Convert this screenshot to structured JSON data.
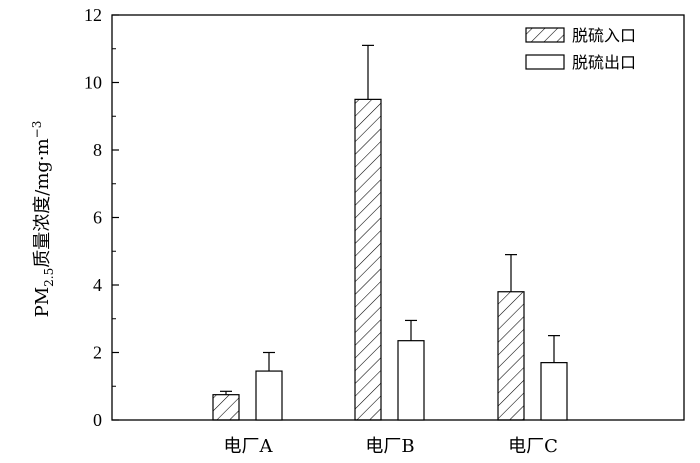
{
  "chart_data": {
    "type": "bar",
    "title": "",
    "xlabel": "",
    "ylabel": {
      "prefix": "PM",
      "sub": "2.5",
      "text": "质量浓度/mg·m",
      "sup": "−3"
    },
    "ylim": [
      0,
      12
    ],
    "yticks": [
      "0",
      "2",
      "4",
      "6",
      "8",
      "10",
      "12"
    ],
    "categories": [
      "电厂A",
      "电厂B",
      "电厂C"
    ],
    "series": [
      {
        "name": "脱硫入口",
        "values": [
          0.75,
          9.5,
          3.8
        ],
        "errors": [
          0.1,
          1.6,
          1.1
        ],
        "pattern": "hatch"
      },
      {
        "name": "脱硫出口",
        "values": [
          1.45,
          2.35,
          1.7
        ],
        "errors": [
          0.55,
          0.6,
          0.8
        ],
        "pattern": "none"
      }
    ],
    "legend_position": "top-right",
    "grid": false
  }
}
